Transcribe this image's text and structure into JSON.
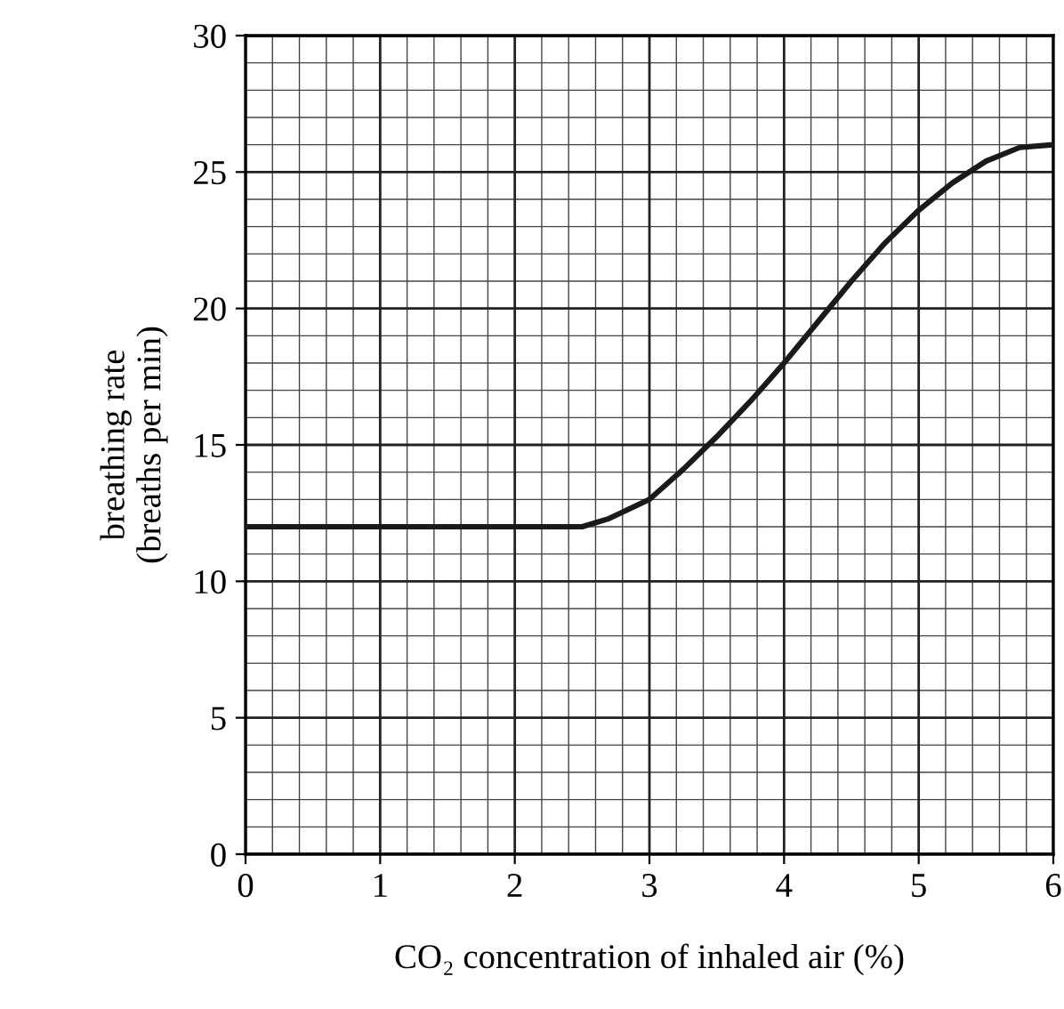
{
  "chart_data": {
    "type": "line",
    "xlabel": "CO₂ concentration of inhaled air (%)",
    "ylabel": "breathing rate\n(breaths per min)",
    "series": [
      {
        "color": "#1a1a1a",
        "x": [
          0,
          0.5,
          1,
          1.5,
          2,
          2.5,
          2.7,
          3.0,
          3.25,
          3.5,
          3.75,
          4.0,
          4.25,
          4.5,
          4.75,
          5.0,
          5.25,
          5.5,
          5.75,
          6.0
        ],
        "values": [
          12,
          12,
          12,
          12,
          12,
          12,
          12.3,
          13,
          14.1,
          15.3,
          16.6,
          18,
          19.5,
          21,
          22.4,
          23.6,
          24.6,
          25.4,
          25.9,
          26
        ]
      }
    ],
    "xlim": [
      0,
      6
    ],
    "ylim": [
      0,
      30
    ],
    "xticks": [
      0,
      1,
      2,
      3,
      4,
      5,
      6
    ],
    "yticks": [
      0,
      5,
      10,
      15,
      20,
      25,
      30
    ],
    "grid": true,
    "line_style": "solid",
    "marker": "none"
  }
}
